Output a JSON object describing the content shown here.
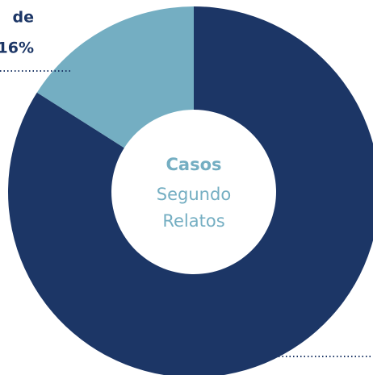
{
  "chart_data": {
    "type": "donut",
    "values": [
      84,
      16
    ],
    "value_labels": [
      null,
      "16%"
    ],
    "colors": [
      "#1c3666",
      "#74aec2"
    ],
    "annotations": [
      "de"
    ],
    "center_title": "Casos",
    "center_lines": [
      "Segundo",
      "Relatos"
    ]
  }
}
